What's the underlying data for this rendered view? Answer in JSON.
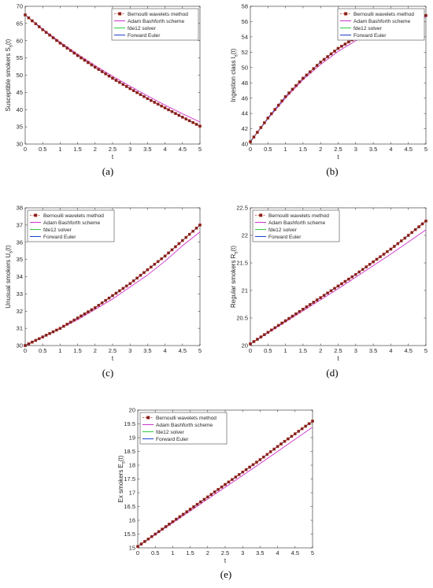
{
  "figure": {
    "panel_labels": [
      "(a)",
      "(b)",
      "(c)",
      "(d)",
      "(e)"
    ]
  },
  "series_styles": [
    {
      "name": "Bernoulli wavelets method",
      "color": "#c0392b",
      "marker": "square-dashed"
    },
    {
      "name": "Adam Bashforth scheme",
      "color": "#cc33cc",
      "marker": "none"
    },
    {
      "name": "fde12 solver",
      "color": "#2ecc40",
      "marker": "none"
    },
    {
      "name": "Forward Euler",
      "color": "#1f3fcc",
      "marker": "none"
    }
  ],
  "chart_data": [
    {
      "type": "line",
      "xlabel": "t",
      "ylabel": "Susceptible smokers S_s(t)",
      "xlim": [
        0,
        5
      ],
      "ylim": [
        30,
        70
      ],
      "xticks": [
        "0",
        "0.5",
        "1",
        "1.5",
        "2",
        "2.5",
        "3",
        "3.5",
        "4",
        "4.5",
        "5"
      ],
      "yticks": [
        "30",
        "35",
        "40",
        "45",
        "50",
        "55",
        "60",
        "65",
        "70"
      ],
      "legend": "top-right",
      "x": [
        0,
        0.5,
        1,
        1.5,
        2,
        2.5,
        3,
        3.5,
        4,
        4.5,
        5
      ],
      "series": [
        {
          "name": "Bernoulli wavelets method",
          "values": [
            67.5,
            63.2,
            59.3,
            55.7,
            52.3,
            49.1,
            46.1,
            43.2,
            40.5,
            37.8,
            35.2
          ]
        },
        {
          "name": "Adam Bashforth scheme",
          "values": [
            67.5,
            63.4,
            59.6,
            56.1,
            52.8,
            49.7,
            46.8,
            44.0,
            41.3,
            38.8,
            36.4
          ]
        },
        {
          "name": "fde12 solver",
          "values": [
            67.5,
            63.2,
            59.3,
            55.7,
            52.3,
            49.1,
            46.1,
            43.2,
            40.5,
            37.8,
            35.2
          ]
        },
        {
          "name": "Forward Euler",
          "values": [
            67.5,
            63.2,
            59.3,
            55.7,
            52.3,
            49.1,
            46.1,
            43.2,
            40.5,
            37.8,
            35.2
          ]
        }
      ]
    },
    {
      "type": "line",
      "xlabel": "t",
      "ylabel": "Ingestion class I_s(t)",
      "xlim": [
        0,
        5
      ],
      "ylim": [
        40,
        58
      ],
      "xticks": [
        "0",
        "0.5",
        "1",
        "1.5",
        "2",
        "2.5",
        "3",
        "3.5",
        "4",
        "4.5",
        "5"
      ],
      "yticks": [
        "40",
        "42",
        "44",
        "46",
        "48",
        "50",
        "52",
        "54",
        "56",
        "58"
      ],
      "legend": "top-right",
      "x": [
        0,
        0.5,
        1,
        1.5,
        2,
        2.5,
        3,
        3.5,
        4,
        4.5,
        5
      ],
      "series": [
        {
          "name": "Bernoulli wavelets method",
          "values": [
            40.3,
            43.4,
            46.2,
            48.6,
            50.7,
            52.5,
            53.9,
            55.0,
            55.9,
            56.4,
            56.8
          ]
        },
        {
          "name": "Adam Bashforth scheme",
          "values": [
            40.3,
            43.3,
            46.0,
            48.4,
            50.4,
            52.1,
            53.5,
            54.7,
            55.6,
            56.2,
            56.6
          ]
        },
        {
          "name": "fde12 solver",
          "values": [
            40.3,
            43.4,
            46.2,
            48.6,
            50.7,
            52.5,
            53.9,
            55.0,
            55.9,
            56.4,
            56.8
          ]
        },
        {
          "name": "Forward Euler",
          "values": [
            40.3,
            43.4,
            46.2,
            48.6,
            50.7,
            52.5,
            53.9,
            55.0,
            55.9,
            56.4,
            56.8
          ]
        }
      ]
    },
    {
      "type": "line",
      "xlabel": "t",
      "ylabel": "Unusual smokers U_s(t)",
      "xlim": [
        0,
        5
      ],
      "ylim": [
        30,
        38
      ],
      "xticks": [
        "0",
        "0.5",
        "1",
        "1.5",
        "2",
        "2.5",
        "3",
        "3.5",
        "4",
        "4.5",
        "5"
      ],
      "yticks": [
        "30",
        "31",
        "32",
        "33",
        "34",
        "35",
        "36",
        "37",
        "38"
      ],
      "legend": "top-left",
      "x": [
        0,
        0.5,
        1,
        1.5,
        2,
        2.5,
        3,
        3.5,
        4,
        4.5,
        5
      ],
      "series": [
        {
          "name": "Bernoulli wavelets method",
          "values": [
            30.0,
            30.5,
            31.0,
            31.6,
            32.2,
            32.9,
            33.6,
            34.4,
            35.2,
            36.1,
            37.0
          ]
        },
        {
          "name": "Adam Bashforth scheme",
          "values": [
            30.0,
            30.5,
            31.0,
            31.5,
            32.1,
            32.7,
            33.4,
            34.1,
            34.9,
            35.8,
            36.6
          ]
        },
        {
          "name": "fde12 solver",
          "values": [
            30.0,
            30.5,
            31.0,
            31.6,
            32.2,
            32.9,
            33.6,
            34.4,
            35.2,
            36.1,
            37.0
          ]
        },
        {
          "name": "Forward Euler",
          "values": [
            30.0,
            30.5,
            31.0,
            31.6,
            32.2,
            32.9,
            33.6,
            34.4,
            35.2,
            36.1,
            37.0
          ]
        }
      ]
    },
    {
      "type": "line",
      "xlabel": "t",
      "ylabel": "Regular smokers R_s(t)",
      "xlim": [
        0,
        5
      ],
      "ylim": [
        20,
        22.5
      ],
      "xticks": [
        "0",
        "0.5",
        "1",
        "1.5",
        "2",
        "2.5",
        "3",
        "3.5",
        "4",
        "4.5",
        "5"
      ],
      "yticks": [
        "20",
        "20.5",
        "21",
        "21.5",
        "22",
        "22.5"
      ],
      "legend": "top-left",
      "x": [
        0,
        0.5,
        1,
        1.5,
        2,
        2.5,
        3,
        3.5,
        4,
        4.5,
        5
      ],
      "series": [
        {
          "name": "Bernoulli wavelets method",
          "values": [
            20.03,
            20.24,
            20.45,
            20.66,
            20.87,
            21.08,
            21.29,
            21.52,
            21.75,
            22.0,
            22.26
          ]
        },
        {
          "name": "Adam Bashforth scheme",
          "values": [
            20.03,
            20.23,
            20.43,
            20.63,
            20.83,
            21.03,
            21.24,
            21.45,
            21.66,
            21.88,
            22.1
          ]
        },
        {
          "name": "fde12 solver",
          "values": [
            20.03,
            20.24,
            20.45,
            20.66,
            20.87,
            21.08,
            21.29,
            21.52,
            21.75,
            22.0,
            22.26
          ]
        },
        {
          "name": "Forward Euler",
          "values": [
            20.03,
            20.24,
            20.45,
            20.66,
            20.87,
            21.08,
            21.29,
            21.52,
            21.75,
            22.0,
            22.26
          ]
        }
      ]
    },
    {
      "type": "line",
      "xlabel": "t",
      "ylabel": "Ex smokers E_s(t)",
      "xlim": [
        0,
        5
      ],
      "ylim": [
        15,
        20
      ],
      "xticks": [
        "0",
        "0.5",
        "1",
        "1.5",
        "2",
        "2.5",
        "3",
        "3.5",
        "4",
        "4.5",
        "5"
      ],
      "yticks": [
        "15",
        "15.5",
        "16",
        "16.5",
        "17",
        "17.5",
        "18",
        "18.5",
        "19",
        "19.5",
        "20"
      ],
      "legend": "top-left",
      "x": [
        0,
        0.5,
        1,
        1.5,
        2,
        2.5,
        3,
        3.5,
        4,
        4.5,
        5
      ],
      "series": [
        {
          "name": "Bernoulli wavelets method",
          "values": [
            15.05,
            15.5,
            15.95,
            16.4,
            16.85,
            17.3,
            17.75,
            18.2,
            18.68,
            19.14,
            19.6
          ]
        },
        {
          "name": "Adam Bashforth scheme",
          "values": [
            15.05,
            15.48,
            15.91,
            16.34,
            16.77,
            17.2,
            17.63,
            18.06,
            18.5,
            18.94,
            19.38
          ]
        },
        {
          "name": "fde12 solver",
          "values": [
            15.05,
            15.5,
            15.95,
            16.4,
            16.85,
            17.3,
            17.75,
            18.2,
            18.68,
            19.14,
            19.6
          ]
        },
        {
          "name": "Forward Euler",
          "values": [
            15.05,
            15.5,
            15.95,
            16.4,
            16.85,
            17.3,
            17.75,
            18.2,
            18.68,
            19.14,
            19.6
          ]
        }
      ]
    }
  ]
}
